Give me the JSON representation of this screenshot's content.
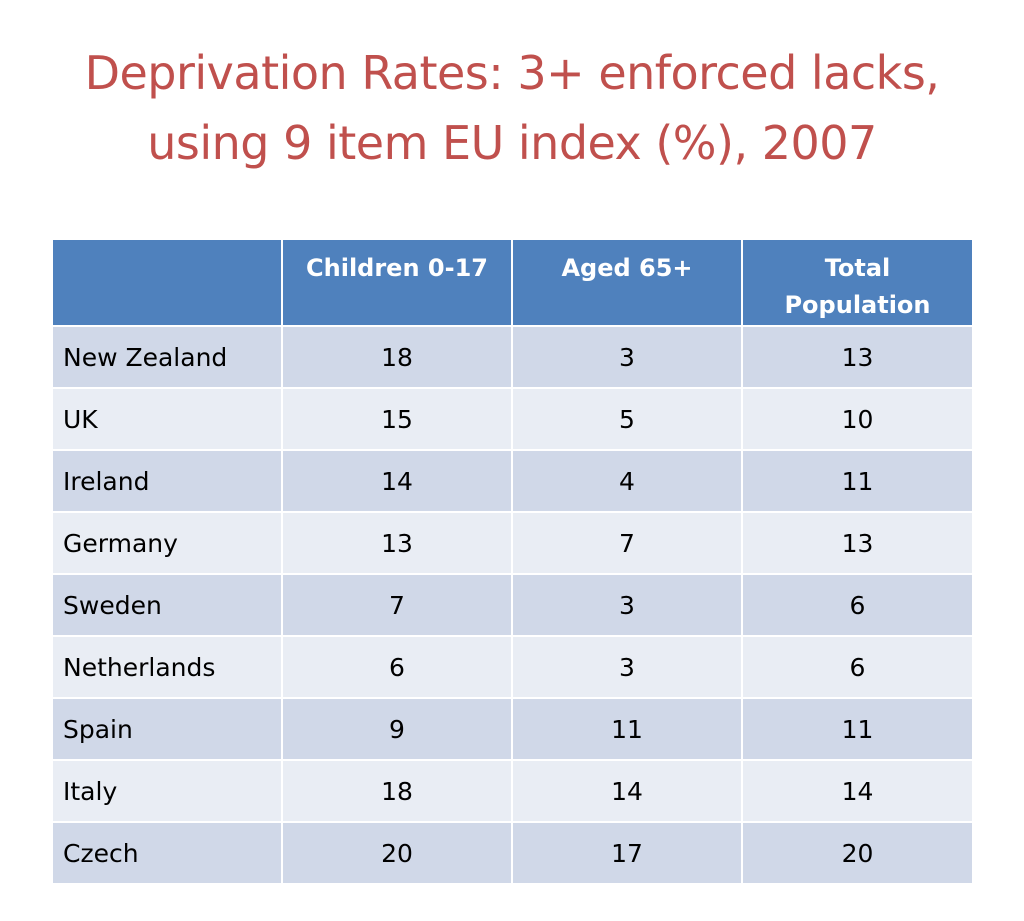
{
  "title": {
    "line1": "Deprivation Rates: 3+ enforced lacks,",
    "line2": "using 9 item EU index (%), 2007"
  },
  "table": {
    "columns": [
      "",
      "Children 0-17",
      "Aged 65+",
      "Total Population"
    ],
    "header_lines": {
      "children": "Children 0-17",
      "aged": "Aged 65+",
      "total_line1": "Total",
      "total_line2": "Population"
    },
    "rows": [
      {
        "country": "New Zealand",
        "children": "18",
        "aged": "3",
        "total": "13"
      },
      {
        "country": "UK",
        "children": "15",
        "aged": "5",
        "total": "10"
      },
      {
        "country": "Ireland",
        "children": "14",
        "aged": "4",
        "total": "11"
      },
      {
        "country": "Germany",
        "children": "13",
        "aged": "7",
        "total": "13"
      },
      {
        "country": "Sweden",
        "children": "7",
        "aged": "3",
        "total": "6"
      },
      {
        "country": "Netherlands",
        "children": "6",
        "aged": "3",
        "total": "6"
      },
      {
        "country": "Spain",
        "children": "9",
        "aged": "11",
        "total": "11"
      },
      {
        "country": "Italy",
        "children": "18",
        "aged": "14",
        "total": "14"
      },
      {
        "country": "Czech",
        "children": "20",
        "aged": "17",
        "total": "20"
      }
    ]
  },
  "colors": {
    "title": "#C0504D",
    "header_bg": "#4F81BD",
    "row_odd": "#D0D8E8",
    "row_even": "#E9EDF4"
  }
}
